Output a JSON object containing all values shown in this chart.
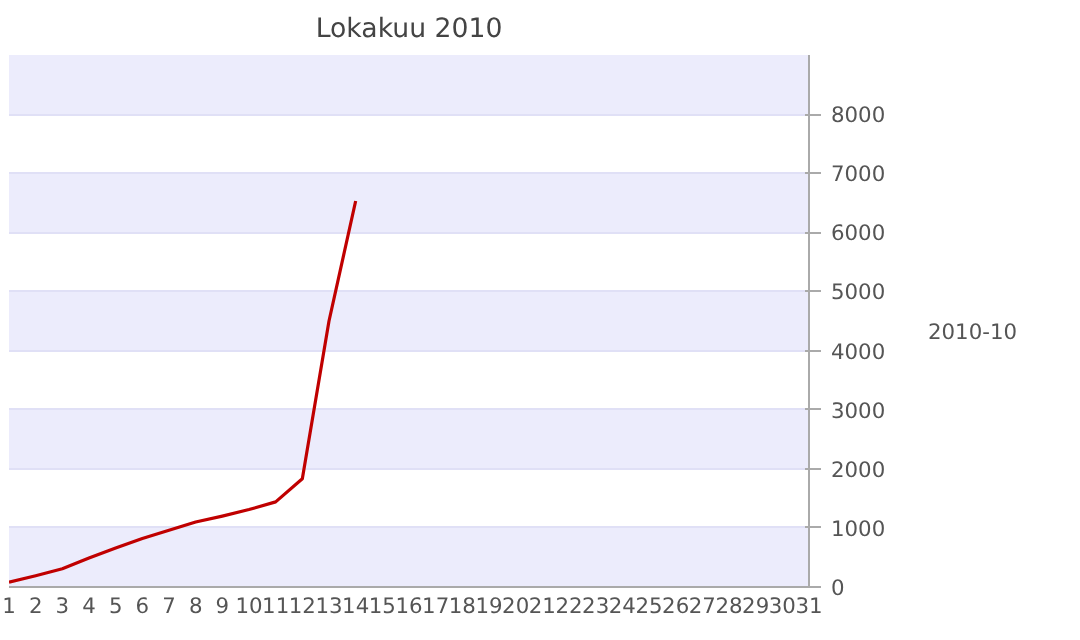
{
  "chart_data": {
    "type": "line",
    "title": "Lokakuu 2010",
    "x": [
      1,
      2,
      3,
      4,
      5,
      6,
      7,
      8,
      9,
      10,
      11,
      12,
      13,
      14
    ],
    "series": [
      {
        "name": "2010-10",
        "color": "#c00000",
        "values": [
          80,
          190,
          310,
          490,
          660,
          820,
          960,
          1100,
          1200,
          1310,
          1440,
          1830,
          4500,
          6530
        ]
      }
    ],
    "xlim": [
      1,
      31
    ],
    "xticks": [
      1,
      2,
      3,
      4,
      5,
      6,
      7,
      8,
      9,
      10,
      11,
      12,
      13,
      14,
      15,
      16,
      17,
      18,
      19,
      20,
      21,
      22,
      23,
      24,
      25,
      26,
      27,
      28,
      29,
      30,
      31
    ],
    "ylim": [
      0,
      9000
    ],
    "yticks": [
      0,
      1000,
      2000,
      3000,
      4000,
      5000,
      6000,
      7000,
      8000
    ],
    "grid": "y",
    "legend": "right",
    "marker": "none",
    "line_style": "solid"
  }
}
